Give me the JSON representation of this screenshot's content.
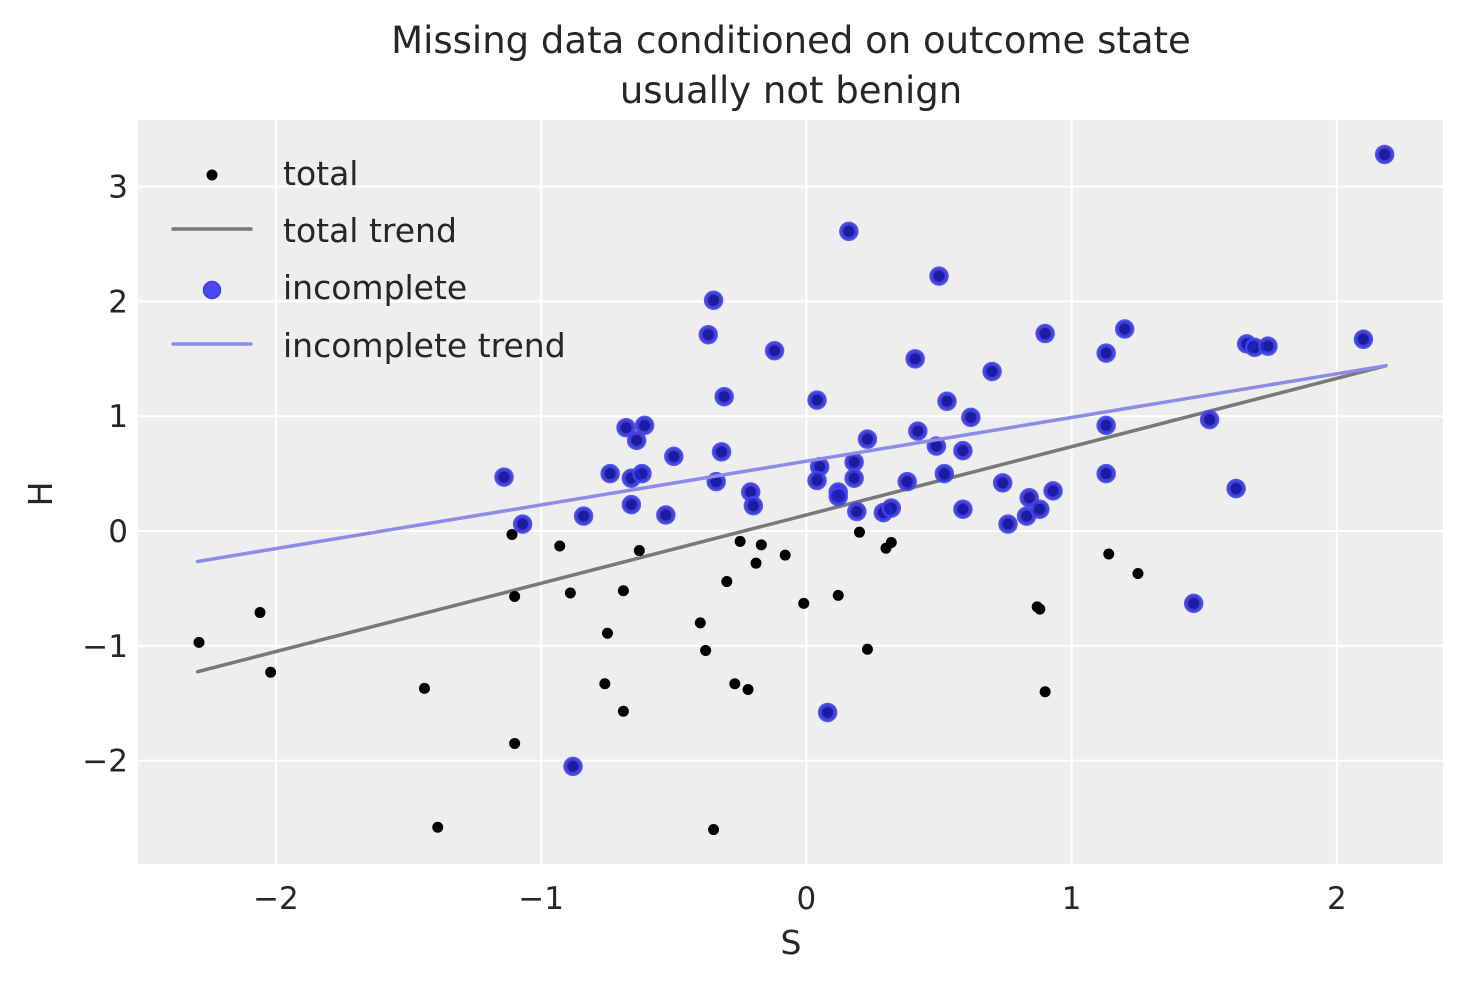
{
  "chart_data": {
    "type": "scatter",
    "title": [
      "Missing data conditioned on outcome state",
      "usually not benign"
    ],
    "xlabel": "S",
    "ylabel": "H",
    "xlim": [
      -2.52,
      2.4
    ],
    "ylim": [
      -2.9,
      3.58
    ],
    "xticks": [
      -2,
      -1,
      0,
      1,
      2
    ],
    "xtick_labels": [
      "−2",
      "−1",
      "0",
      "1",
      "2"
    ],
    "yticks": [
      -2,
      -1,
      0,
      1,
      2,
      3
    ],
    "ytick_labels": [
      "−2",
      "−1",
      "0",
      "1",
      "2",
      "3"
    ],
    "grid": true,
    "legend_position": "top-left",
    "colors": {
      "background": "#eeeeee",
      "grid": "#ffffff",
      "total": "#000000",
      "total_trend": "#787878",
      "incomplete_fill": "#2020c0",
      "incomplete_edge": "#4545ee",
      "incomplete_trend": "#8c8ce8"
    },
    "legend": [
      {
        "label": "total",
        "kind": "point-small"
      },
      {
        "label": "total trend",
        "kind": "line-gray"
      },
      {
        "label": "incomplete",
        "kind": "point-blue"
      },
      {
        "label": "incomplete trend",
        "kind": "line-blue"
      }
    ],
    "series": [
      {
        "name": "total",
        "points": [
          [
            -2.29,
            -0.97
          ],
          [
            -2.06,
            -0.71
          ],
          [
            -2.02,
            -1.23
          ],
          [
            -1.44,
            -1.37
          ],
          [
            -1.39,
            -2.58
          ],
          [
            -1.11,
            -0.03
          ],
          [
            -1.1,
            -0.57
          ],
          [
            -1.1,
            -1.85
          ],
          [
            -0.93,
            -0.13
          ],
          [
            -0.89,
            -0.54
          ],
          [
            -0.75,
            -0.89
          ],
          [
            -0.76,
            -1.33
          ],
          [
            -0.69,
            -0.52
          ],
          [
            -0.69,
            -1.57
          ],
          [
            -0.63,
            -0.17
          ],
          [
            -0.4,
            -0.8
          ],
          [
            -0.38,
            -1.04
          ],
          [
            -0.35,
            -2.6
          ],
          [
            -0.3,
            -0.44
          ],
          [
            -0.27,
            -1.33
          ],
          [
            -0.25,
            -0.09
          ],
          [
            -0.22,
            -1.38
          ],
          [
            -0.19,
            -0.28
          ],
          [
            -0.17,
            -0.12
          ],
          [
            -0.08,
            -0.21
          ],
          [
            -0.01,
            -0.63
          ],
          [
            0.12,
            -0.56
          ],
          [
            0.2,
            -0.01
          ],
          [
            0.23,
            -1.03
          ],
          [
            0.3,
            -0.15
          ],
          [
            0.32,
            -0.1
          ],
          [
            0.87,
            -0.66
          ],
          [
            0.88,
            -0.68
          ],
          [
            0.9,
            -1.4
          ],
          [
            1.14,
            -0.2
          ],
          [
            1.25,
            -0.37
          ],
          [
            -1.14,
            0.47
          ],
          [
            -1.07,
            0.06
          ],
          [
            -0.88,
            -2.05
          ],
          [
            -0.84,
            0.13
          ],
          [
            -0.74,
            0.5
          ],
          [
            -0.68,
            0.9
          ],
          [
            -0.61,
            0.92
          ],
          [
            -0.64,
            0.79
          ],
          [
            -0.66,
            0.46
          ],
          [
            -0.62,
            0.5
          ],
          [
            -0.66,
            0.23
          ],
          [
            -0.5,
            0.65
          ],
          [
            -0.53,
            0.14
          ],
          [
            -0.35,
            2.01
          ],
          [
            -0.37,
            1.71
          ],
          [
            -0.31,
            1.17
          ],
          [
            -0.32,
            0.69
          ],
          [
            -0.34,
            0.43
          ],
          [
            -0.21,
            0.34
          ],
          [
            -0.2,
            0.22
          ],
          [
            -0.12,
            1.57
          ],
          [
            0.04,
            1.14
          ],
          [
            0.05,
            0.56
          ],
          [
            0.04,
            0.44
          ],
          [
            0.08,
            -1.58
          ],
          [
            0.12,
            0.34
          ],
          [
            0.12,
            0.3
          ],
          [
            0.16,
            2.61
          ],
          [
            0.18,
            0.6
          ],
          [
            0.18,
            0.46
          ],
          [
            0.19,
            0.17
          ],
          [
            0.23,
            0.8
          ],
          [
            0.29,
            0.16
          ],
          [
            0.32,
            0.2
          ],
          [
            0.38,
            0.43
          ],
          [
            0.41,
            1.5
          ],
          [
            0.42,
            0.87
          ],
          [
            0.49,
            0.74
          ],
          [
            0.5,
            2.22
          ],
          [
            0.52,
            0.5
          ],
          [
            0.53,
            1.13
          ],
          [
            0.59,
            0.7
          ],
          [
            0.59,
            0.19
          ],
          [
            0.62,
            0.99
          ],
          [
            0.7,
            1.39
          ],
          [
            0.74,
            0.42
          ],
          [
            0.76,
            0.06
          ],
          [
            0.83,
            0.13
          ],
          [
            0.84,
            0.29
          ],
          [
            0.88,
            0.19
          ],
          [
            0.9,
            1.72
          ],
          [
            0.93,
            0.35
          ],
          [
            1.13,
            1.55
          ],
          [
            1.13,
            0.92
          ],
          [
            1.13,
            0.5
          ],
          [
            1.2,
            1.76
          ],
          [
            1.46,
            -0.63
          ],
          [
            1.52,
            0.97
          ],
          [
            1.62,
            0.37
          ],
          [
            1.66,
            1.63
          ],
          [
            1.69,
            1.6
          ],
          [
            1.74,
            1.61
          ],
          [
            2.1,
            1.67
          ],
          [
            2.18,
            3.28
          ]
        ]
      },
      {
        "name": "incomplete",
        "points": [
          [
            -1.14,
            0.47
          ],
          [
            -1.07,
            0.06
          ],
          [
            -0.88,
            -2.05
          ],
          [
            -0.84,
            0.13
          ],
          [
            -0.74,
            0.5
          ],
          [
            -0.68,
            0.9
          ],
          [
            -0.61,
            0.92
          ],
          [
            -0.64,
            0.79
          ],
          [
            -0.66,
            0.46
          ],
          [
            -0.62,
            0.5
          ],
          [
            -0.66,
            0.23
          ],
          [
            -0.5,
            0.65
          ],
          [
            -0.53,
            0.14
          ],
          [
            -0.35,
            2.01
          ],
          [
            -0.37,
            1.71
          ],
          [
            -0.31,
            1.17
          ],
          [
            -0.32,
            0.69
          ],
          [
            -0.34,
            0.43
          ],
          [
            -0.21,
            0.34
          ],
          [
            -0.2,
            0.22
          ],
          [
            -0.12,
            1.57
          ],
          [
            0.04,
            1.14
          ],
          [
            0.05,
            0.56
          ],
          [
            0.04,
            0.44
          ],
          [
            0.08,
            -1.58
          ],
          [
            0.12,
            0.34
          ],
          [
            0.12,
            0.3
          ],
          [
            0.16,
            2.61
          ],
          [
            0.18,
            0.6
          ],
          [
            0.18,
            0.46
          ],
          [
            0.19,
            0.17
          ],
          [
            0.23,
            0.8
          ],
          [
            0.29,
            0.16
          ],
          [
            0.32,
            0.2
          ],
          [
            0.38,
            0.43
          ],
          [
            0.41,
            1.5
          ],
          [
            0.42,
            0.87
          ],
          [
            0.49,
            0.74
          ],
          [
            0.5,
            2.22
          ],
          [
            0.52,
            0.5
          ],
          [
            0.53,
            1.13
          ],
          [
            0.59,
            0.7
          ],
          [
            0.59,
            0.19
          ],
          [
            0.62,
            0.99
          ],
          [
            0.7,
            1.39
          ],
          [
            0.74,
            0.42
          ],
          [
            0.76,
            0.06
          ],
          [
            0.83,
            0.13
          ],
          [
            0.84,
            0.29
          ],
          [
            0.88,
            0.19
          ],
          [
            0.9,
            1.72
          ],
          [
            0.93,
            0.35
          ],
          [
            1.13,
            1.55
          ],
          [
            1.13,
            0.92
          ],
          [
            1.13,
            0.5
          ],
          [
            1.2,
            1.76
          ],
          [
            1.46,
            -0.63
          ],
          [
            1.52,
            0.97
          ],
          [
            1.62,
            0.37
          ],
          [
            1.66,
            1.63
          ],
          [
            1.69,
            1.6
          ],
          [
            1.74,
            1.61
          ],
          [
            2.1,
            1.67
          ],
          [
            2.18,
            3.28
          ]
        ]
      }
    ],
    "trends": [
      {
        "name": "total trend",
        "x": [
          -2.295,
          2.185
        ],
        "y": [
          -1.225,
          1.44
        ]
      },
      {
        "name": "incomplete trend",
        "x": [
          -2.295,
          2.185
        ],
        "y": [
          -0.265,
          1.44
        ]
      }
    ]
  }
}
